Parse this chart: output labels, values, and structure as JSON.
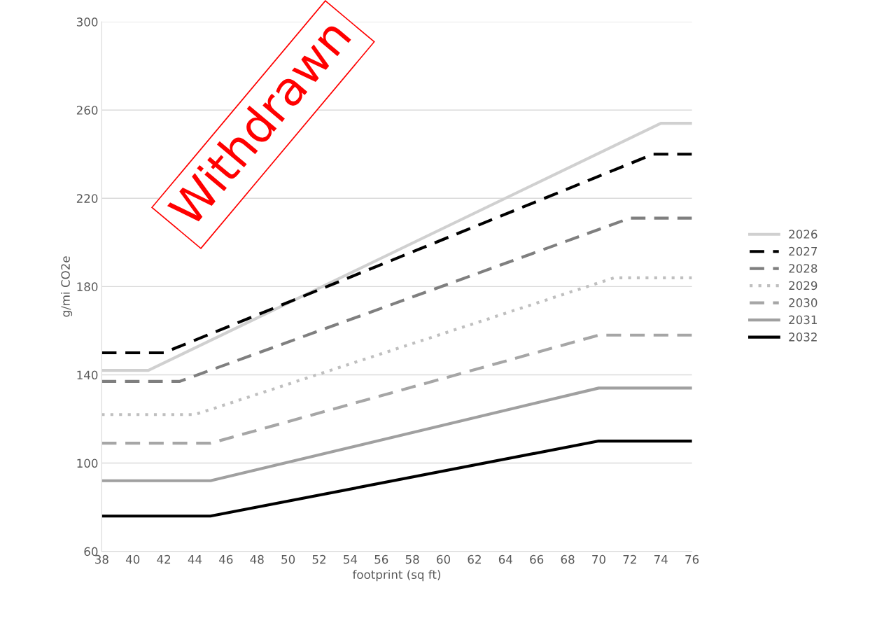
{
  "chart_data": {
    "type": "line",
    "xlabel": "footprint (sq ft)",
    "ylabel": "g/mi CO2e",
    "xlim": [
      38,
      76
    ],
    "xticks": [
      38,
      40,
      42,
      44,
      46,
      48,
      50,
      52,
      54,
      56,
      58,
      60,
      62,
      64,
      66,
      68,
      70,
      72,
      74,
      76
    ],
    "ylim": [
      60,
      300
    ],
    "yticks": [
      60,
      100,
      140,
      180,
      220,
      260,
      300
    ],
    "grid": "y",
    "legend": "right",
    "marker": "none",
    "annotations": [
      "Withdrawn"
    ],
    "series": [
      {
        "name": "2026",
        "color": "#d0d0d0",
        "line_style": "solid",
        "x": [
          38,
          41,
          74,
          76
        ],
        "values": [
          142,
          142,
          254,
          254
        ]
      },
      {
        "name": "2027",
        "color": "#000000",
        "line_style": "dashed",
        "x": [
          38,
          42,
          73.5,
          76
        ],
        "values": [
          150,
          150,
          240,
          240
        ]
      },
      {
        "name": "2028",
        "color": "#7f7f7f",
        "line_style": "dashed",
        "x": [
          38,
          43,
          72,
          76
        ],
        "values": [
          137,
          137,
          211,
          211
        ]
      },
      {
        "name": "2029",
        "color": "#bfbfbf",
        "line_style": "dotted",
        "x": [
          38,
          44,
          71,
          76
        ],
        "values": [
          122,
          122,
          184,
          184
        ]
      },
      {
        "name": "2030",
        "color": "#a6a6a6",
        "line_style": "dashed",
        "x": [
          38,
          45,
          70,
          76
        ],
        "values": [
          109,
          109,
          158,
          158
        ]
      },
      {
        "name": "2031",
        "color": "#a0a0a0",
        "line_style": "solid",
        "x": [
          38,
          45,
          70,
          76
        ],
        "values": [
          92,
          92,
          134,
          134
        ]
      },
      {
        "name": "2032",
        "color": "#000000",
        "line_style": "solid",
        "x": [
          38,
          45,
          70,
          76
        ],
        "values": [
          76,
          76,
          110,
          110
        ]
      }
    ]
  }
}
